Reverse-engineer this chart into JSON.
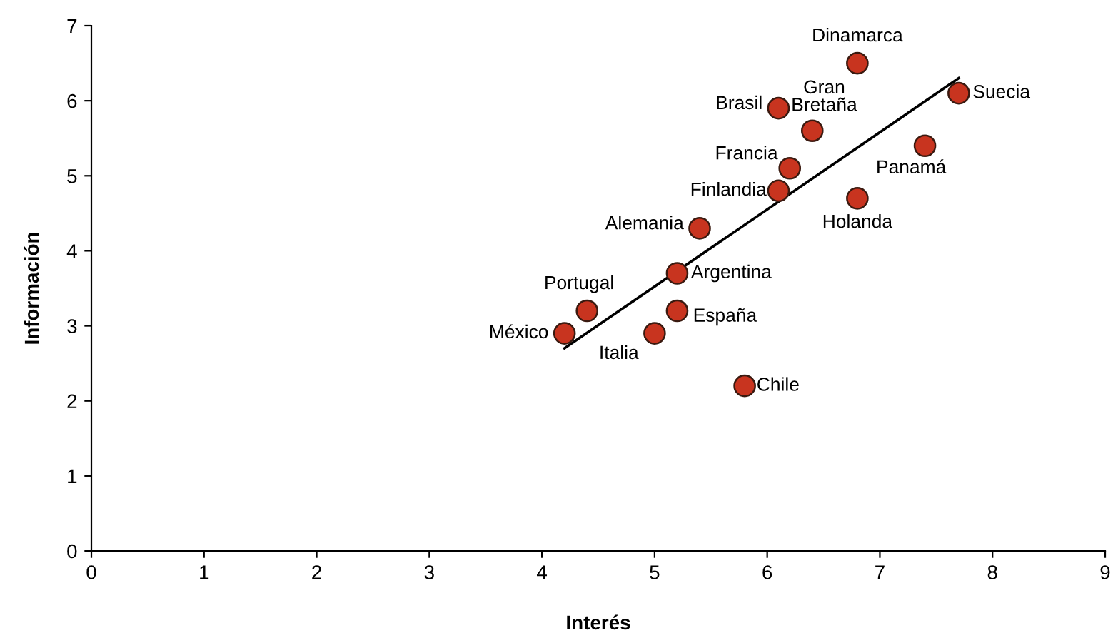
{
  "chart_data": {
    "type": "scatter",
    "xlabel": "Interés",
    "ylabel": "Información",
    "xlim": [
      0,
      9
    ],
    "ylim": [
      0,
      7
    ],
    "xticks": [
      0,
      1,
      2,
      3,
      4,
      5,
      6,
      7,
      8,
      9
    ],
    "yticks": [
      0,
      1,
      2,
      3,
      4,
      5,
      6,
      7
    ],
    "grid": false,
    "series": [
      {
        "color": "#c8341f",
        "marker": "circle",
        "x": [
          4.2,
          4.4,
          5.0,
          5.2,
          5.2,
          5.4,
          5.8,
          6.1,
          6.2,
          6.1,
          6.4,
          6.8,
          6.8,
          7.4,
          7.7
        ],
        "values": [
          2.9,
          3.2,
          2.9,
          3.2,
          3.7,
          4.3,
          2.2,
          4.8,
          5.1,
          5.9,
          5.6,
          6.5,
          4.7,
          5.4,
          6.1
        ]
      },
      {
        "type": "line",
        "marker": "none",
        "color": "#000000",
        "x": [
          4.2,
          7.7
        ],
        "values": [
          2.7,
          6.3
        ]
      }
    ],
    "annotations": [
      {
        "text": "México",
        "x": 4.2,
        "y": 2.9
      },
      {
        "text": "Portugal",
        "x": 4.4,
        "y": 3.2
      },
      {
        "text": "Italia",
        "x": 5.0,
        "y": 2.9
      },
      {
        "text": "España",
        "x": 5.2,
        "y": 3.2
      },
      {
        "text": "Argentina",
        "x": 5.2,
        "y": 3.7
      },
      {
        "text": "Alemania",
        "x": 5.4,
        "y": 4.3
      },
      {
        "text": "Chile",
        "x": 5.8,
        "y": 2.2
      },
      {
        "text": "Finlandia",
        "x": 6.1,
        "y": 4.8
      },
      {
        "text": "Francia",
        "x": 6.2,
        "y": 5.1
      },
      {
        "text": "Brasil",
        "x": 6.1,
        "y": 5.9
      },
      {
        "text": "Gran\nBretaña",
        "x": 6.4,
        "y": 5.6
      },
      {
        "text": "Dinamarca",
        "x": 6.8,
        "y": 6.5
      },
      {
        "text": "Holanda",
        "x": 6.8,
        "y": 4.7
      },
      {
        "text": "Panamá",
        "x": 7.4,
        "y": 5.4
      },
      {
        "text": "Suecia",
        "x": 7.7,
        "y": 6.1
      }
    ]
  }
}
